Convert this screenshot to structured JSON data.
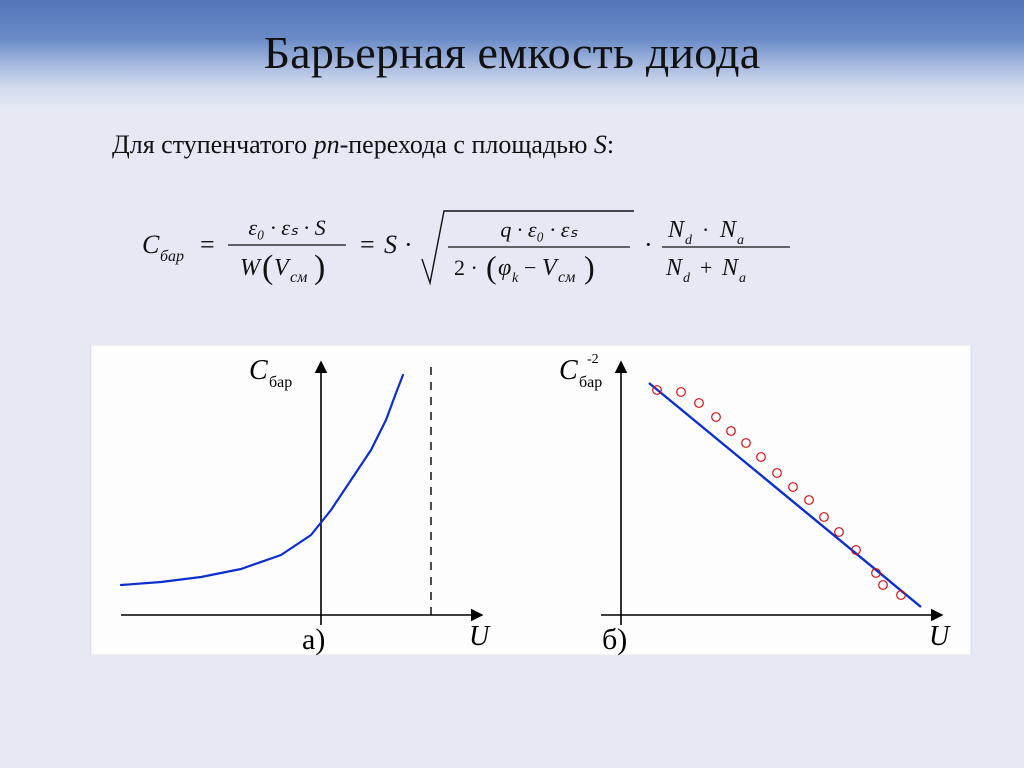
{
  "title": "Барьерная емкость диода",
  "subtitle_prefix": "Для ступенчатого ",
  "subtitle_pn": "pn",
  "subtitle_suffix": "-перехода с площадью ",
  "subtitle_S": "S",
  "subtitle_end": ":",
  "colors": {
    "banner_top": "#5476b8",
    "banner_mid": "#a9bbe0",
    "slide_bg": "#e6e9f4",
    "chart_bg": "#fdfdfd",
    "axis": "#000000",
    "curve": "#0b2ed0",
    "marker_stroke": "#d01010",
    "marker_fill": "none",
    "text": "#111111"
  },
  "formula": {
    "lhs_symbol": "C",
    "lhs_sub": "бар",
    "eq": "=",
    "frac1_num": "ε₀ · εₛ · S",
    "frac1_den_left": "W",
    "frac1_den_arg": "V",
    "frac1_den_arg_sub": "см",
    "mid": "= S ·",
    "sqrt_num": "q · ε₀ · εₛ",
    "sqrt_den_prefix": "2 · (",
    "sqrt_den_phi": "φ",
    "sqrt_den_phi_sub": "k",
    "sqrt_den_minus": " − V",
    "sqrt_den_v_sub": "см",
    "sqrt_den_suffix": ")",
    "dot": "·",
    "ratio_num": "Nd · Na",
    "ratio_den": "Nd + Na",
    "N": "N",
    "d": "d",
    "a": "a"
  },
  "chart_a": {
    "type": "line",
    "ylabel": "C",
    "ylabel_sub": "бар",
    "xlabel": "U",
    "sub_label": "а)",
    "xlim": [
      -200,
      160
    ],
    "ylim": [
      -10,
      240
    ],
    "asymptote_x": 110,
    "curve_points": [
      [
        -200,
        30
      ],
      [
        -160,
        33
      ],
      [
        -120,
        38
      ],
      [
        -80,
        46
      ],
      [
        -40,
        60
      ],
      [
        -10,
        80
      ],
      [
        10,
        105
      ],
      [
        30,
        135
      ],
      [
        50,
        165
      ],
      [
        65,
        195
      ],
      [
        75,
        222
      ],
      [
        82,
        240
      ]
    ],
    "curve_width": 2.2,
    "dash": "8,7"
  },
  "chart_b": {
    "type": "scatter-line",
    "ylabel": "C",
    "ylabel_sub": "бар",
    "ylabel_sup": "-2",
    "xlabel": "U",
    "sub_label": "б)",
    "xlim": [
      -20,
      320
    ],
    "ylim": [
      -10,
      240
    ],
    "line": {
      "x1": 28,
      "y1": 232,
      "x2": 300,
      "y2": 8
    },
    "line_width": 2.4,
    "marker_radius": 4.3,
    "points": [
      [
        36,
        225
      ],
      [
        60,
        223
      ],
      [
        78,
        212
      ],
      [
        95,
        198
      ],
      [
        110,
        184
      ],
      [
        125,
        172
      ],
      [
        140,
        158
      ],
      [
        156,
        142
      ],
      [
        172,
        128
      ],
      [
        188,
        115
      ],
      [
        203,
        98
      ],
      [
        218,
        83
      ],
      [
        235,
        65
      ],
      [
        255,
        42
      ],
      [
        262,
        30
      ],
      [
        280,
        20
      ]
    ]
  }
}
